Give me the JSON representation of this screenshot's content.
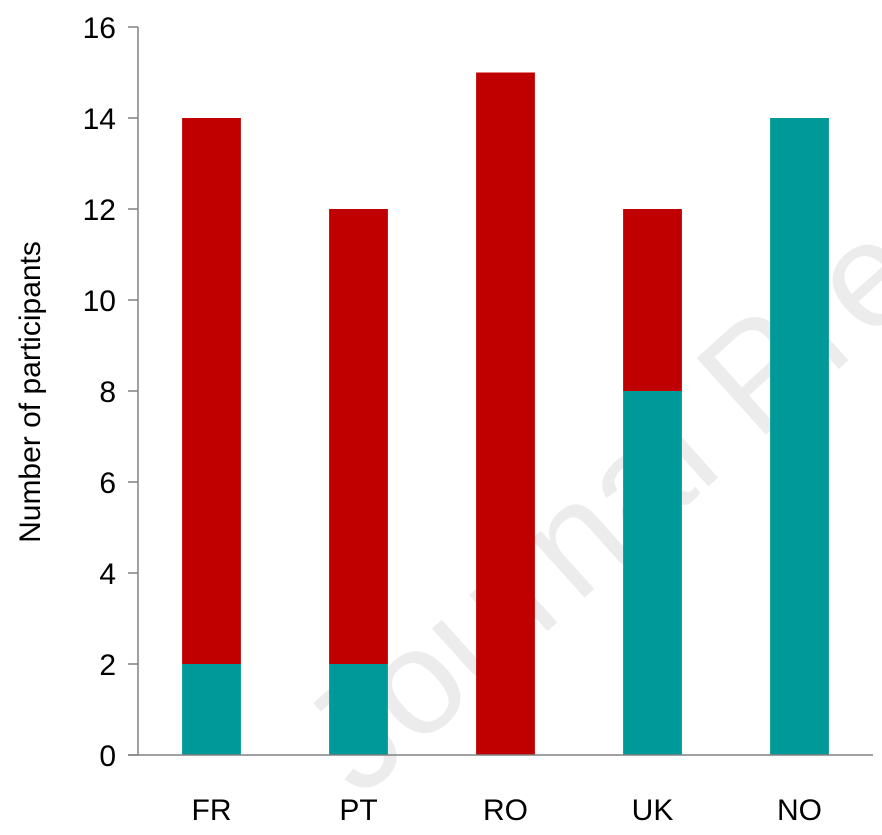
{
  "chart_data": {
    "type": "bar",
    "stacked": true,
    "categories": [
      "FR",
      "PT",
      "RO",
      "UK",
      "NO"
    ],
    "series": [
      {
        "color": "#009999",
        "values": [
          2,
          2,
          0,
          8,
          14
        ]
      },
      {
        "color": "#C00000",
        "values": [
          12,
          10,
          15,
          4,
          0
        ]
      }
    ],
    "ylabel": "Number of participants",
    "ylim": [
      0,
      16
    ],
    "yticks": [
      0,
      2,
      4,
      6,
      8,
      10,
      12,
      14,
      16
    ],
    "grid": false,
    "legend": "none"
  },
  "watermark": "Journal Pre-proof"
}
